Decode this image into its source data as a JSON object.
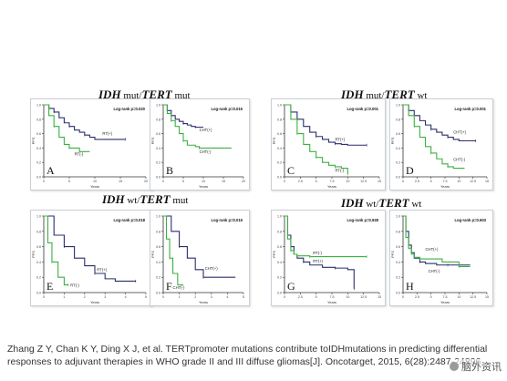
{
  "group_titles": {
    "top_left": {
      "main": "IDH",
      "mid": " mut/",
      "main2": "TERT",
      "suffix": " mut"
    },
    "top_right": {
      "main": "IDH",
      "mid": " mut/",
      "main2": "TERT",
      "suffix": " wt"
    },
    "bottom_left": {
      "main": "IDH",
      "mid": " wt/",
      "main2": "TERT",
      "suffix": " mut"
    },
    "bottom_right": {
      "main": "IDH",
      "mid": " wt/",
      "main2": "TERT",
      "suffix": " wt"
    }
  },
  "caption": "Zhang Z Y, Chan K Y, Ding X J, et al. TERTpromoter mutations contribute toIDHmutations in predicting differential responses to adjuvant therapies in WHO grade II and III diffuse gliomas[J]. Oncotarget, 2015, 6(28):2487-24896.",
  "watermark": "脑外资讯",
  "colors": {
    "navy": "#2b2f6b",
    "green": "#3cb043"
  },
  "chart_data": [
    {
      "type": "line",
      "panel_letter": "A",
      "pvalue": "Log-rank p=0.020",
      "ylabel": "PFS",
      "xlabel": "Years",
      "xlim": [
        0,
        20
      ],
      "xticks": [
        "0",
        "5",
        "10",
        "15",
        "20"
      ],
      "ylim": [
        0,
        1
      ],
      "yticks": [
        "0.0",
        "0.2",
        "0.4",
        "0.6",
        "0.8",
        "1.0"
      ],
      "series": [
        {
          "name": "RT(+)",
          "color": "navy",
          "points": [
            [
              0,
              1
            ],
            [
              1,
              0.95
            ],
            [
              2,
              0.9
            ],
            [
              3,
              0.82
            ],
            [
              4,
              0.75
            ],
            [
              5,
              0.7
            ],
            [
              6,
              0.65
            ],
            [
              7,
              0.62
            ],
            [
              8,
              0.58
            ],
            [
              9,
              0.55
            ],
            [
              10,
              0.52
            ],
            [
              16,
              0.52
            ]
          ]
        },
        {
          "name": "RT(-)",
          "color": "green",
          "points": [
            [
              0,
              1
            ],
            [
              1,
              0.85
            ],
            [
              2,
              0.7
            ],
            [
              3,
              0.55
            ],
            [
              4,
              0.45
            ],
            [
              5,
              0.4
            ],
            [
              7,
              0.35
            ],
            [
              9,
              0.35
            ]
          ]
        }
      ],
      "labels": [
        {
          "text": "RT(+)",
          "x": 11.5,
          "y": 0.58
        },
        {
          "text": "RT(-)",
          "x": 6,
          "y": 0.3
        }
      ]
    },
    {
      "type": "line",
      "panel_letter": "B",
      "pvalue": "Log-rank p=0.015",
      "ylabel": "PFS",
      "xlabel": "Years",
      "xlim": [
        0,
        20
      ],
      "xticks": [
        "0",
        "5",
        "10",
        "15",
        "20"
      ],
      "ylim": [
        0,
        1
      ],
      "yticks": [
        "0.0",
        "0.2",
        "0.4",
        "0.6",
        "0.8",
        "1.0"
      ],
      "series": [
        {
          "name": "CHT(+)",
          "color": "navy",
          "points": [
            [
              0,
              1
            ],
            [
              1,
              0.92
            ],
            [
              2,
              0.85
            ],
            [
              3,
              0.8
            ],
            [
              4,
              0.77
            ],
            [
              5,
              0.74
            ],
            [
              6,
              0.72
            ],
            [
              7,
              0.7
            ],
            [
              8,
              0.69
            ],
            [
              10,
              0.69
            ]
          ]
        },
        {
          "name": "CHT(-)",
          "color": "green",
          "points": [
            [
              0,
              1
            ],
            [
              1,
              0.88
            ],
            [
              2,
              0.78
            ],
            [
              3,
              0.7
            ],
            [
              4,
              0.6
            ],
            [
              5,
              0.5
            ],
            [
              6,
              0.44
            ],
            [
              8,
              0.42
            ],
            [
              9,
              0.4
            ],
            [
              17,
              0.4
            ]
          ]
        }
      ],
      "labels": [
        {
          "text": "CHT(+)",
          "x": 9,
          "y": 0.63
        },
        {
          "text": "CHT(-)",
          "x": 9,
          "y": 0.33
        }
      ]
    },
    {
      "type": "line",
      "panel_letter": "C",
      "pvalue": "Log-rank p=0.001",
      "ylabel": "PFS",
      "xlabel": "Years",
      "xlim": [
        0,
        15
      ],
      "xticks": [
        "0",
        "2.5",
        "5",
        "7.5",
        "10",
        "12.5",
        "15"
      ],
      "ylim": [
        0,
        1
      ],
      "yticks": [
        "0.0",
        "0.2",
        "0.4",
        "0.6",
        "0.8",
        "1.0"
      ],
      "series": [
        {
          "name": "RT(+)",
          "color": "navy",
          "points": [
            [
              0,
              1
            ],
            [
              1,
              0.9
            ],
            [
              2,
              0.8
            ],
            [
              3,
              0.7
            ],
            [
              4,
              0.62
            ],
            [
              5,
              0.56
            ],
            [
              6,
              0.52
            ],
            [
              7,
              0.48
            ],
            [
              8,
              0.46
            ],
            [
              9,
              0.45
            ],
            [
              10,
              0.44
            ],
            [
              13,
              0.44
            ]
          ]
        },
        {
          "name": "RT(-)",
          "color": "green",
          "points": [
            [
              0,
              1
            ],
            [
              1,
              0.8
            ],
            [
              2,
              0.6
            ],
            [
              3,
              0.45
            ],
            [
              4,
              0.35
            ],
            [
              5,
              0.27
            ],
            [
              6,
              0.2
            ],
            [
              7,
              0.16
            ],
            [
              8,
              0.14
            ],
            [
              9,
              0.12
            ],
            [
              10,
              0.12
            ],
            [
              10,
              0.04
            ]
          ]
        }
      ],
      "labels": [
        {
          "text": "RT(+)",
          "x": 8,
          "y": 0.5
        },
        {
          "text": "RT(-)",
          "x": 8,
          "y": 0.07
        }
      ]
    },
    {
      "type": "line",
      "panel_letter": "D",
      "pvalue": "Log-rank p=0.001",
      "ylabel": "PFS",
      "xlabel": "Years",
      "xlim": [
        0,
        15
      ],
      "xticks": [
        "0",
        "2.5",
        "5",
        "7.5",
        "10",
        "12.5",
        "15"
      ],
      "ylim": [
        0,
        1
      ],
      "yticks": [
        "0.0",
        "0.2",
        "0.4",
        "0.6",
        "0.8",
        "1.0"
      ],
      "series": [
        {
          "name": "CHT(+)",
          "color": "navy",
          "points": [
            [
              0,
              1
            ],
            [
              1,
              0.92
            ],
            [
              2,
              0.85
            ],
            [
              3,
              0.78
            ],
            [
              4,
              0.72
            ],
            [
              5,
              0.66
            ],
            [
              6,
              0.62
            ],
            [
              7,
              0.58
            ],
            [
              8,
              0.55
            ],
            [
              9,
              0.52
            ],
            [
              10,
              0.5
            ],
            [
              13,
              0.5
            ]
          ]
        },
        {
          "name": "CHT(-)",
          "color": "green",
          "points": [
            [
              0,
              1
            ],
            [
              1,
              0.85
            ],
            [
              2,
              0.7
            ],
            [
              3,
              0.55
            ],
            [
              4,
              0.42
            ],
            [
              5,
              0.33
            ],
            [
              6,
              0.25
            ],
            [
              7,
              0.18
            ],
            [
              8,
              0.14
            ],
            [
              9,
              0.12
            ],
            [
              11,
              0.12
            ]
          ]
        }
      ],
      "labels": [
        {
          "text": "CHT(+)",
          "x": 9,
          "y": 0.6
        },
        {
          "text": "CHT(-)",
          "x": 9,
          "y": 0.22
        }
      ]
    },
    {
      "type": "line",
      "panel_letter": "E",
      "pvalue": "Log-rank p=0.018",
      "ylabel": "PFS",
      "xlabel": "Years",
      "xlim": [
        0,
        5
      ],
      "xticks": [
        "0",
        "1",
        "2",
        "3",
        "4",
        "5"
      ],
      "ylim": [
        0,
        1
      ],
      "yticks": [
        "0.0",
        "0.2",
        "0.4",
        "0.6",
        "0.8",
        "1.0"
      ],
      "series": [
        {
          "name": "RT(+)",
          "color": "navy",
          "points": [
            [
              0,
              1
            ],
            [
              0.5,
              0.75
            ],
            [
              1,
              0.6
            ],
            [
              1.5,
              0.45
            ],
            [
              2,
              0.35
            ],
            [
              2.5,
              0.25
            ],
            [
              3,
              0.18
            ],
            [
              3.5,
              0.15
            ],
            [
              4.5,
              0.15
            ]
          ]
        },
        {
          "name": "RT(-)",
          "color": "green",
          "points": [
            [
              0,
              1
            ],
            [
              0.2,
              0.65
            ],
            [
              0.4,
              0.4
            ],
            [
              0.7,
              0.2
            ],
            [
              1,
              0.1
            ],
            [
              1.2,
              0.1
            ]
          ]
        }
      ],
      "labels": [
        {
          "text": "RT(+)",
          "x": 2.6,
          "y": 0.28
        },
        {
          "text": "RT(-)",
          "x": 1.3,
          "y": 0.08
        }
      ]
    },
    {
      "type": "line",
      "panel_letter": "F",
      "pvalue": "Log-rank p=0.015",
      "ylabel": "PFS",
      "xlabel": "Years",
      "xlim": [
        0,
        5
      ],
      "xticks": [
        "0",
        "1",
        "2",
        "3",
        "4",
        "5"
      ],
      "ylim": [
        0,
        1
      ],
      "yticks": [
        "0.0",
        "0.2",
        "0.4",
        "0.6",
        "0.8",
        "1.0"
      ],
      "series": [
        {
          "name": "CHT(+)",
          "color": "navy",
          "points": [
            [
              0,
              1
            ],
            [
              0.5,
              0.8
            ],
            [
              1,
              0.6
            ],
            [
              1.5,
              0.45
            ],
            [
              2,
              0.3
            ],
            [
              2.5,
              0.2
            ],
            [
              4.5,
              0.2
            ]
          ]
        },
        {
          "name": "CHT(-)",
          "color": "green",
          "points": [
            [
              0,
              1
            ],
            [
              0.2,
              0.7
            ],
            [
              0.4,
              0.45
            ],
            [
              0.6,
              0.25
            ],
            [
              0.9,
              0.1
            ],
            [
              1.2,
              0.1
            ]
          ]
        }
      ],
      "labels": [
        {
          "text": "CHT(+)",
          "x": 2.6,
          "y": 0.3
        },
        {
          "text": "CHT(-)",
          "x": 0.6,
          "y": 0.05
        }
      ]
    },
    {
      "type": "line",
      "panel_letter": "G",
      "pvalue": "Log-rank p=0.928",
      "ylabel": "PFS",
      "xlabel": "Years",
      "xlim": [
        0,
        15
      ],
      "xticks": [
        "0",
        "2.5",
        "5",
        "7.5",
        "10",
        "12.5",
        "15"
      ],
      "ylim": [
        0,
        1
      ],
      "yticks": [
        "0.0",
        "0.2",
        "0.4",
        "0.6",
        "0.8",
        "1.0"
      ],
      "series": [
        {
          "name": "RT(+)",
          "color": "navy",
          "points": [
            [
              0,
              1
            ],
            [
              0.5,
              0.75
            ],
            [
              1,
              0.6
            ],
            [
              1.5,
              0.5
            ],
            [
              2,
              0.45
            ],
            [
              3,
              0.4
            ],
            [
              4,
              0.36
            ],
            [
              6,
              0.33
            ],
            [
              8,
              0.32
            ],
            [
              10,
              0.3
            ],
            [
              11,
              0.3
            ],
            [
              11,
              0.05
            ]
          ]
        },
        {
          "name": "RT(-)",
          "color": "green",
          "points": [
            [
              0,
              1
            ],
            [
              0.5,
              0.7
            ],
            [
              1,
              0.55
            ],
            [
              1.5,
              0.5
            ],
            [
              2,
              0.48
            ],
            [
              4,
              0.47
            ],
            [
              6,
              0.47
            ],
            [
              8,
              0.47
            ],
            [
              13,
              0.47
            ]
          ]
        }
      ],
      "labels": [
        {
          "text": "RT(-)",
          "x": 4.5,
          "y": 0.5
        },
        {
          "text": "RT(+)",
          "x": 4.5,
          "y": 0.39
        }
      ]
    },
    {
      "type": "line",
      "panel_letter": "H",
      "pvalue": "Log-rank p=0.603",
      "ylabel": "PFS",
      "xlabel": "Years",
      "xlim": [
        0,
        15
      ],
      "xticks": [
        "0",
        "2.5",
        "5",
        "7.5",
        "10",
        "12.5",
        "15"
      ],
      "ylim": [
        0,
        1
      ],
      "yticks": [
        "0.0",
        "0.2",
        "0.4",
        "0.6",
        "0.8",
        "1.0"
      ],
      "series": [
        {
          "name": "CHT(+)",
          "color": "navy",
          "points": [
            [
              0,
              1
            ],
            [
              0.5,
              0.8
            ],
            [
              1,
              0.62
            ],
            [
              1.5,
              0.52
            ],
            [
              2,
              0.45
            ],
            [
              3,
              0.4
            ],
            [
              4,
              0.38
            ],
            [
              6,
              0.36
            ],
            [
              8,
              0.36
            ],
            [
              12,
              0.36
            ]
          ]
        },
        {
          "name": "CHT(-)",
          "color": "green",
          "points": [
            [
              0,
              1
            ],
            [
              0.5,
              0.72
            ],
            [
              1,
              0.58
            ],
            [
              1.5,
              0.5
            ],
            [
              2,
              0.46
            ],
            [
              3,
              0.44
            ],
            [
              5,
              0.44
            ],
            [
              7,
              0.4
            ],
            [
              10,
              0.34
            ],
            [
              12,
              0.34
            ]
          ]
        }
      ],
      "labels": [
        {
          "text": "CHT(+)",
          "x": 4,
          "y": 0.55
        },
        {
          "text": "CHT(-)",
          "x": 4.5,
          "y": 0.26
        }
      ]
    }
  ]
}
